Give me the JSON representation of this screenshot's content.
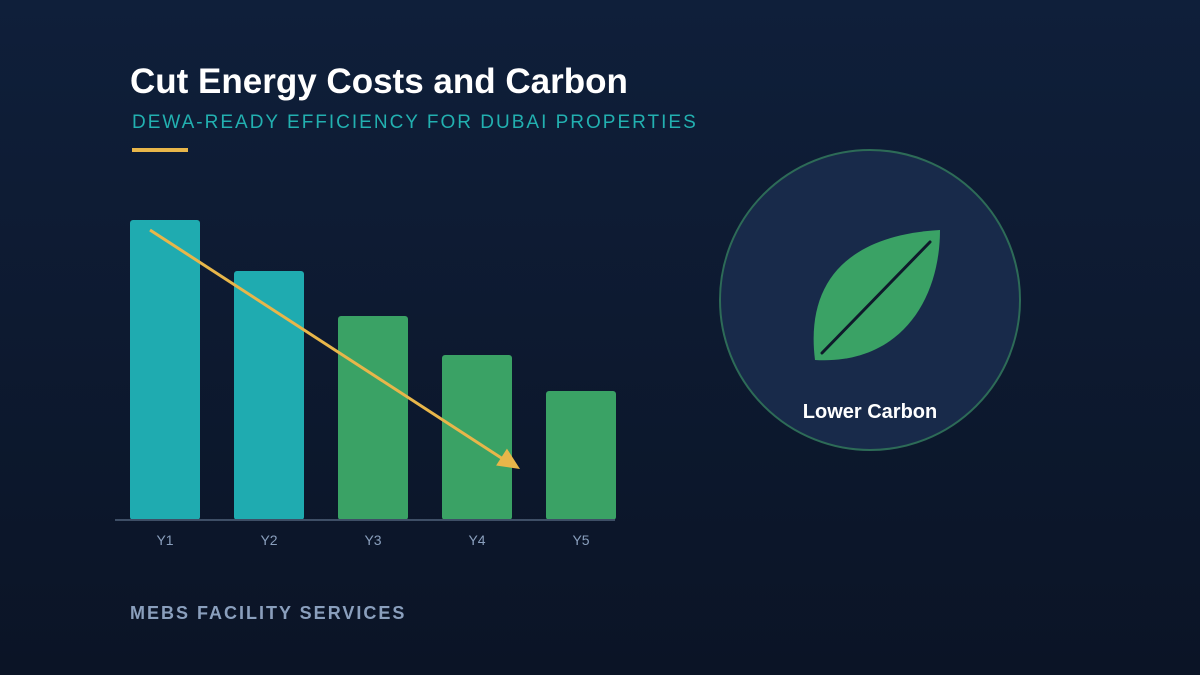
{
  "slide": {
    "title": "Cut Energy Costs and Carbon",
    "subtitle": "DEWA-READY EFFICIENCY FOR DUBAI PROPERTIES",
    "footer": "MEBS FACILITY SERVICES"
  },
  "badge": {
    "label": "Lower Carbon",
    "icon": "leaf-icon"
  },
  "colors": {
    "teal": "#1fabb0",
    "green": "#3aa265",
    "accent": "#e8b64a",
    "badge_fill": "#182a4a",
    "badge_stroke": "#2d6b57"
  },
  "chart_data": {
    "type": "bar",
    "categories": [
      "Y1",
      "Y2",
      "Y3",
      "Y4",
      "Y5"
    ],
    "values": [
      100,
      83,
      68,
      55,
      43
    ],
    "bar_colors": [
      "#1fabb0",
      "#1fabb0",
      "#3aa265",
      "#3aa265",
      "#3aa265"
    ],
    "ylim": [
      0,
      100
    ],
    "trend_arrow": "downward",
    "grid": false,
    "title": "",
    "xlabel": "",
    "ylabel": ""
  }
}
